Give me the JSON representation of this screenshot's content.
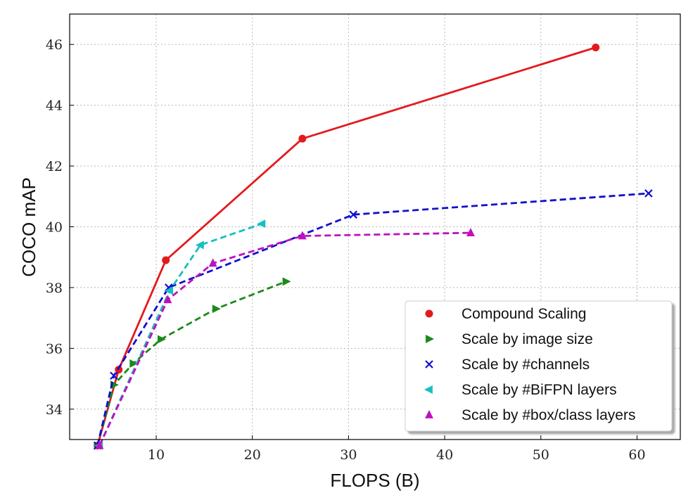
{
  "chart_data": {
    "type": "line",
    "xlabel": "FLOPS (B)",
    "ylabel": "COCO mAP",
    "xlim": [
      1,
      64.5
    ],
    "ylim": [
      33.0,
      47.0
    ],
    "xticks": [
      10,
      20,
      30,
      40,
      50,
      60
    ],
    "yticks": [
      34,
      36,
      38,
      40,
      42,
      44,
      46
    ],
    "xtick_labels": [
      "10",
      "20",
      "30",
      "40",
      "50",
      "60"
    ],
    "ytick_labels": [
      "34",
      "36",
      "38",
      "40",
      "42",
      "44",
      "46"
    ],
    "grid": true,
    "legend_position": "bottom-right",
    "series": [
      {
        "name": "Compound Scaling",
        "color": "#e31a1c",
        "marker": "circle",
        "dash": "solid",
        "points": [
          [
            3.9,
            32.8
          ],
          [
            6.1,
            35.3
          ],
          [
            11.0,
            38.9
          ],
          [
            25.2,
            42.9
          ],
          [
            55.7,
            45.9
          ]
        ]
      },
      {
        "name": "Scale by image size",
        "color": "#1a8a1a",
        "marker": "triangle-right",
        "dash": "dashed",
        "points": [
          [
            3.9,
            32.8
          ],
          [
            5.6,
            34.8
          ],
          [
            7.6,
            35.5
          ],
          [
            10.5,
            36.3
          ],
          [
            16.2,
            37.3
          ],
          [
            23.5,
            38.2
          ]
        ]
      },
      {
        "name": "Scale by #channels",
        "color": "#1010d0",
        "marker": "x",
        "dash": "dashed",
        "points": [
          [
            3.9,
            32.8
          ],
          [
            5.6,
            35.1
          ],
          [
            11.3,
            38.0
          ],
          [
            30.5,
            40.4
          ],
          [
            61.2,
            41.1
          ]
        ]
      },
      {
        "name": "Scale by #BiFPN layers",
        "color": "#17bfbf",
        "marker": "triangle-left",
        "dash": "dashed",
        "points": [
          [
            4.1,
            32.8
          ],
          [
            11.4,
            37.9
          ],
          [
            14.6,
            39.4
          ],
          [
            21.0,
            40.1
          ]
        ]
      },
      {
        "name": "Scale by #box/class layers",
        "color": "#bf10bf",
        "marker": "triangle-up",
        "dash": "dashed",
        "points": [
          [
            4.1,
            32.8
          ],
          [
            11.2,
            37.6
          ],
          [
            15.9,
            38.8
          ],
          [
            25.2,
            39.7
          ],
          [
            42.7,
            39.8
          ]
        ]
      }
    ]
  }
}
